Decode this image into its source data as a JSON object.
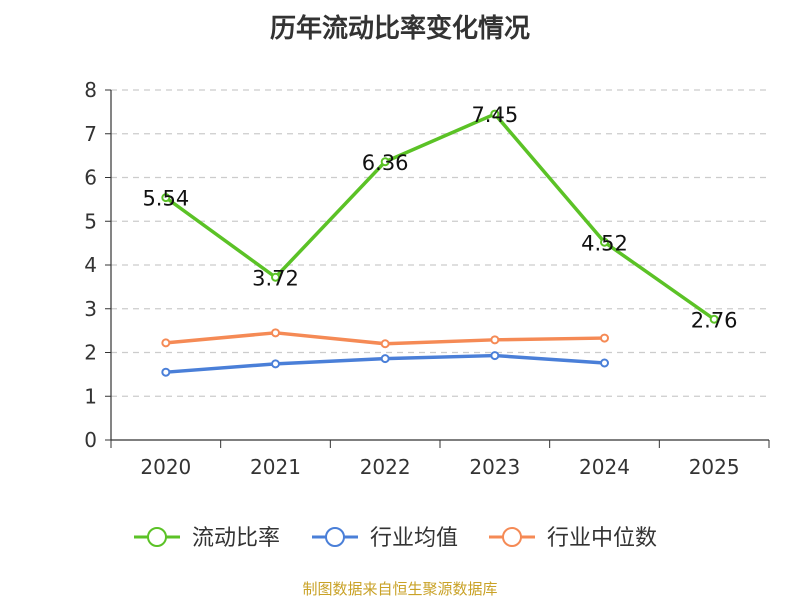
{
  "source_note": "制图数据来自恒生聚源数据库",
  "chart_data": {
    "type": "line",
    "title": "历年流动比率变化情况",
    "xlabel": "",
    "ylabel": "",
    "categories": [
      "2020",
      "2021",
      "2022",
      "2023",
      "2024",
      "2025"
    ],
    "ylim": [
      0,
      8
    ],
    "yticks": [
      0,
      1,
      2,
      3,
      4,
      5,
      6,
      7,
      8
    ],
    "grid": true,
    "legend_position": "bottom",
    "series": [
      {
        "name": "流动比率",
        "color": "#5bc226",
        "values": [
          5.54,
          3.72,
          6.36,
          7.45,
          4.52,
          2.76
        ],
        "labels": [
          "5.54",
          "3.72",
          "6.36",
          "7.45",
          "4.52",
          "2.76"
        ]
      },
      {
        "name": "行业均值",
        "color": "#4a7fd8",
        "values": [
          1.55,
          1.74,
          1.86,
          1.93,
          1.76,
          null
        ]
      },
      {
        "name": "行业中位数",
        "color": "#f58a55",
        "values": [
          2.22,
          2.45,
          2.2,
          2.29,
          2.33,
          null
        ]
      }
    ]
  }
}
